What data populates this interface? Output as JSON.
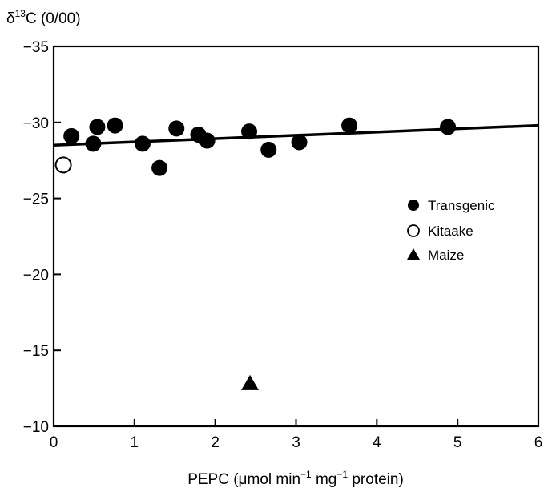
{
  "chart_data": {
    "type": "scatter",
    "ylabel_prefix": "δ",
    "ylabel_sup": "13",
    "ylabel_suffix": "C (0/00)",
    "xlabel_pre": "PEPC (μmol min",
    "xlabel_sup1": "−1",
    "xlabel_mid": " mg",
    "xlabel_sup2": "−1",
    "xlabel_post": " protein)",
    "xlim": [
      0,
      6
    ],
    "ylim": [
      -35,
      -10
    ],
    "y_inverted": true,
    "x_ticks": [
      "0",
      "1",
      "2",
      "3",
      "4",
      "5",
      "6"
    ],
    "y_ticks": [
      "−35",
      "−30",
      "−25",
      "−20",
      "−15",
      "−10"
    ],
    "legend_position": "right",
    "series": [
      {
        "name": "Transgenic",
        "marker": "filled-circle",
        "color": "#000000",
        "x": [
          0.22,
          0.49,
          0.54,
          0.76,
          1.1,
          1.31,
          1.52,
          1.79,
          1.9,
          2.42,
          2.66,
          3.04,
          3.66,
          4.88
        ],
        "y": [
          -29.1,
          -28.6,
          -29.7,
          -29.8,
          -28.6,
          -27.0,
          -29.6,
          -29.2,
          -28.8,
          -29.4,
          -28.2,
          -28.7,
          -29.8,
          -29.7
        ]
      },
      {
        "name": "Kitaake",
        "marker": "open-circle",
        "color": "#000000",
        "x": [
          0.12
        ],
        "y": [
          -27.2
        ]
      },
      {
        "name": "Maize",
        "marker": "filled-triangle",
        "color": "#000000",
        "x": [
          2.43
        ],
        "y": [
          -12.8
        ]
      }
    ],
    "regression_line": {
      "x": [
        0,
        6
      ],
      "y": [
        -28.5,
        -29.8
      ]
    }
  }
}
